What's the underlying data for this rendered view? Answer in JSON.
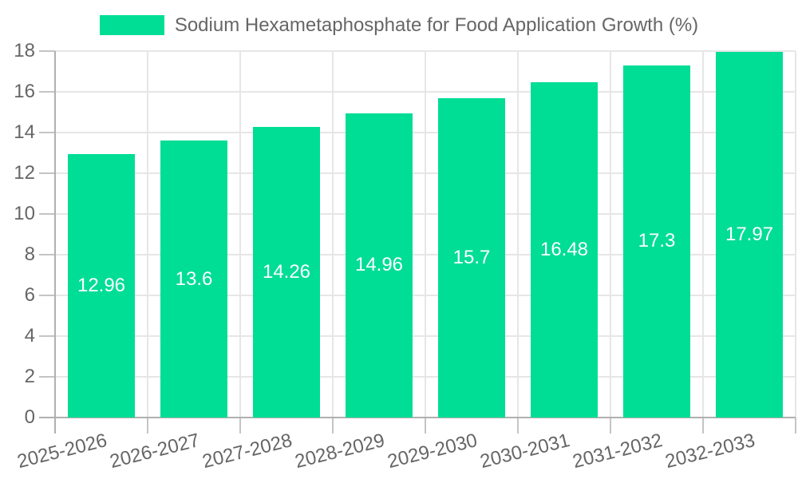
{
  "legend": {
    "label": "Sodium Hexametaphosphate for Food Application Growth (%)"
  },
  "chart_data": {
    "type": "bar",
    "title": "Sodium Hexametaphosphate for Food Application Growth (%)",
    "categories": [
      "2025-2026",
      "2026-2027",
      "2027-2028",
      "2028-2029",
      "2029-2030",
      "2030-2031",
      "2031-2032",
      "2032-2033"
    ],
    "values": [
      12.96,
      13.6,
      14.26,
      14.96,
      15.7,
      16.48,
      17.3,
      17.97
    ],
    "value_labels": [
      "12.96",
      "13.6",
      "14.26",
      "14.96",
      "15.7",
      "16.48",
      "17.3",
      "17.97"
    ],
    "xlabel": "",
    "ylabel": "",
    "ylim": [
      0,
      18
    ],
    "y_ticks": [
      0,
      2,
      4,
      6,
      8,
      10,
      12,
      14,
      16,
      18
    ],
    "grid": true,
    "legend_position": "top",
    "colors": {
      "bar": "#00DD95",
      "value_label": "#ffffff",
      "axis_text": "#666666",
      "gridline": "#e6e6e6",
      "tick": "#c4c4c4",
      "axis_line": "#b0b0b0",
      "background": "#ffffff"
    }
  }
}
